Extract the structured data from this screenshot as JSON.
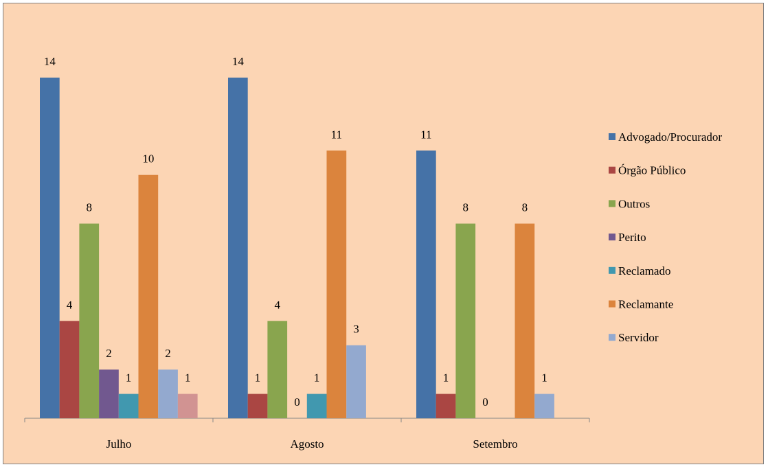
{
  "chart_data": {
    "type": "bar",
    "categories": [
      "Julho",
      "Agosto",
      "Setembro"
    ],
    "ylim": [
      0,
      14
    ],
    "grid": false,
    "legend_position": "right",
    "series": [
      {
        "name": "Advogado/Procurador",
        "color": "#4572a7",
        "values": [
          14,
          14,
          11
        ],
        "labels": [
          "14",
          "14",
          "11"
        ]
      },
      {
        "name": "Órgão Público",
        "color": "#aa4643",
        "values": [
          4,
          1,
          1
        ],
        "labels": [
          "4",
          "1",
          "1"
        ]
      },
      {
        "name": "Outros",
        "color": "#89a54e",
        "values": [
          8,
          4,
          8
        ],
        "labels": [
          "8",
          "4",
          "8"
        ]
      },
      {
        "name": "Perito",
        "color": "#71588f",
        "values": [
          2,
          0,
          0
        ],
        "labels": [
          "2",
          "0",
          "0"
        ]
      },
      {
        "name": "Reclamado",
        "color": "#4198af",
        "values": [
          1,
          1,
          null
        ],
        "labels": [
          "1",
          "1",
          ""
        ]
      },
      {
        "name": "Reclamante",
        "color": "#db843d",
        "values": [
          10,
          11,
          8
        ],
        "labels": [
          "10",
          "11",
          "8"
        ]
      },
      {
        "name": "Servidor",
        "color": "#93a9cf",
        "values": [
          2,
          3,
          1
        ],
        "labels": [
          "2",
          "3",
          "1"
        ]
      },
      {
        "name": "",
        "color": "#d19392",
        "values": [
          1,
          null,
          null
        ],
        "labels": [
          "1",
          "",
          ""
        ]
      }
    ]
  }
}
